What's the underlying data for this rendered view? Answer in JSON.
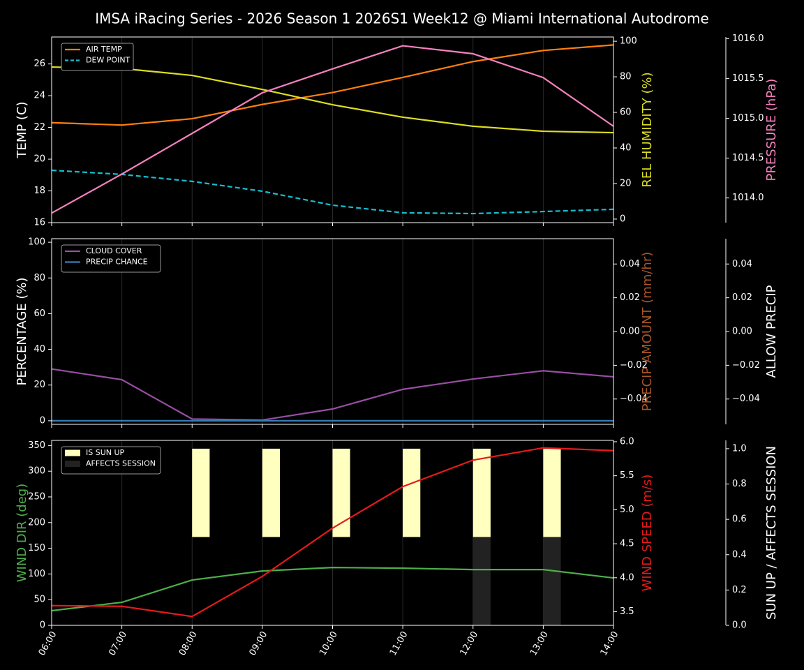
{
  "title": "IMSA iRacing Series - 2026 Season 1 2026S1 Week12 @ Miami International Autodrome",
  "chart_data": [
    {
      "type": "line",
      "legend": "upper left",
      "ylabel": "TEMP (C)",
      "ylabel_color": "#ffffff",
      "ylim": [
        16,
        27.7
      ],
      "yticks": [
        16,
        18,
        20,
        22,
        24,
        26
      ],
      "y2label": "REL HUMIDITY (%)",
      "y2label_color": "#dddd22",
      "y2lim": [
        -2,
        102.4
      ],
      "y2ticks": [
        0,
        20,
        40,
        60,
        80,
        100
      ],
      "y3label": "PRESSURE (hPa)",
      "y3label_color": "#f781bf",
      "y3lim": [
        1013.69,
        1016.02
      ],
      "y3ticks": [
        {
          "value": 1014,
          "label": "1014.0"
        },
        {
          "value": 1014.5,
          "label": "1014.5"
        },
        {
          "value": 1015,
          "label": "1015.0"
        },
        {
          "value": 1015.5,
          "label": "1015.5"
        },
        {
          "value": 1016,
          "label": "1016.0"
        }
      ],
      "series": [
        {
          "name": "AIR TEMP",
          "color": "#ff7f0e",
          "axis": "y",
          "legend": true,
          "values": [
            22.3,
            22.15,
            22.55,
            23.45,
            24.2,
            25.15,
            26.15,
            26.85,
            27.2
          ]
        },
        {
          "name": "DEW POINT",
          "color": "#17becf",
          "axis": "y",
          "legend": true,
          "dashed": true,
          "values": [
            19.3,
            19.04,
            18.6,
            17.98,
            17.1,
            16.62,
            16.57,
            16.7,
            16.84
          ]
        },
        {
          "color": "#dddd22",
          "axis": "y2",
          "values": [
            85.5,
            84.7,
            80.8,
            72.9,
            64.3,
            57.3,
            52.2,
            49.4,
            48.6
          ]
        },
        {
          "color": "#f781bf",
          "axis": "y3",
          "values": [
            1013.81,
            1014.3,
            1014.81,
            1015.32,
            1015.62,
            1015.91,
            1015.81,
            1015.51,
            1014.9
          ]
        }
      ]
    },
    {
      "type": "line",
      "legend": "upper left",
      "ylabel": "PERCENTAGE (%)",
      "ylabel_color": "#ffffff",
      "ylim": [
        -2,
        102
      ],
      "yticks": [
        0,
        20,
        40,
        60,
        80,
        100
      ],
      "y2label": "PRECIP AMOUNT (mm/hr)",
      "y2label_color": "#a65628",
      "y2lim": [
        -0.055,
        0.055
      ],
      "y2ticks": [
        {
          "value": -0.04,
          "label": "−0.04"
        },
        {
          "value": -0.02,
          "label": "−0.02"
        },
        {
          "value": 0,
          "label": "0.00"
        },
        {
          "value": 0.02,
          "label": "0.02"
        },
        {
          "value": 0.04,
          "label": "0.04"
        }
      ],
      "y3label": "ALLOW PRECIP",
      "y3label_color": "#ffffff",
      "y3lim": [
        -0.055,
        0.055
      ],
      "y3ticks": [
        {
          "value": -0.04,
          "label": "−0.04"
        },
        {
          "value": -0.02,
          "label": "−0.02"
        },
        {
          "value": 0,
          "label": "0.00"
        },
        {
          "value": 0.02,
          "label": "0.02"
        },
        {
          "value": 0.04,
          "label": "0.04"
        }
      ],
      "series": [
        {
          "name": "CLOUD COVER",
          "color": "#984ea3",
          "axis": "y",
          "legend": true,
          "values": [
            29,
            23,
            1,
            0.4,
            6.6,
            17.6,
            23.4,
            28,
            24.6
          ]
        },
        {
          "name": "PRECIP CHANCE",
          "color": "#377eb8",
          "axis": "y",
          "legend": true,
          "values": [
            0,
            0,
            0,
            0,
            0,
            0,
            0,
            0,
            0
          ]
        }
      ]
    },
    {
      "type": "line",
      "legend": "upper left",
      "categories": [
        "06:00",
        "07:00",
        "08:00",
        "09:00",
        "10:00",
        "11:00",
        "12:00",
        "13:00",
        "14:00"
      ],
      "ylabel": "WIND DIR (deg)",
      "ylabel_color": "#4daf4a",
      "ylim": [
        0,
        360
      ],
      "yticks": [
        0,
        50,
        100,
        150,
        200,
        250,
        300,
        350
      ],
      "y2label": "WIND SPEED (m/s)",
      "y2label_color": "#e41a1c",
      "y2lim": [
        3.3,
        6.02
      ],
      "y2ticks": [
        3.5,
        {
          "value": 4,
          "label": "4.0"
        },
        4.5,
        {
          "value": 5,
          "label": "5.0"
        },
        5.5,
        {
          "value": 6,
          "label": "6.0"
        }
      ],
      "y3label": "SUN UP / AFFECTS SESSION",
      "y3label_color": "#ffffff",
      "y3lim": [
        0,
        1.047
      ],
      "y3ticks": [
        {
          "value": 0,
          "label": "0.0"
        },
        0.2,
        0.4,
        0.6,
        0.8,
        {
          "value": 1,
          "label": "1.0"
        }
      ],
      "series": [
        {
          "name": "IS SUN UP",
          "color": "#ffffc0",
          "axis": "y3",
          "bar": true,
          "base": 0.5,
          "legend": true,
          "values": [
            0,
            0,
            1,
            1,
            1,
            1,
            1,
            1,
            0
          ]
        },
        {
          "name": "AFFECTS SESSION",
          "color": "#222222",
          "axis": "y3",
          "bar": true,
          "base": 0,
          "legend": true,
          "values": [
            0,
            0,
            0,
            0,
            0,
            0,
            0.5,
            0.5,
            0
          ]
        },
        {
          "color": "#4daf4a",
          "axis": "y",
          "values": [
            28.5,
            44.8,
            88.2,
            105.8,
            112.6,
            111.2,
            108.5,
            108.5,
            92.3
          ]
        },
        {
          "color": "#e41a1c",
          "axis": "y2",
          "values": [
            3.59,
            3.58,
            3.43,
            4.02,
            4.73,
            5.34,
            5.73,
            5.91,
            5.87
          ]
        }
      ]
    }
  ]
}
